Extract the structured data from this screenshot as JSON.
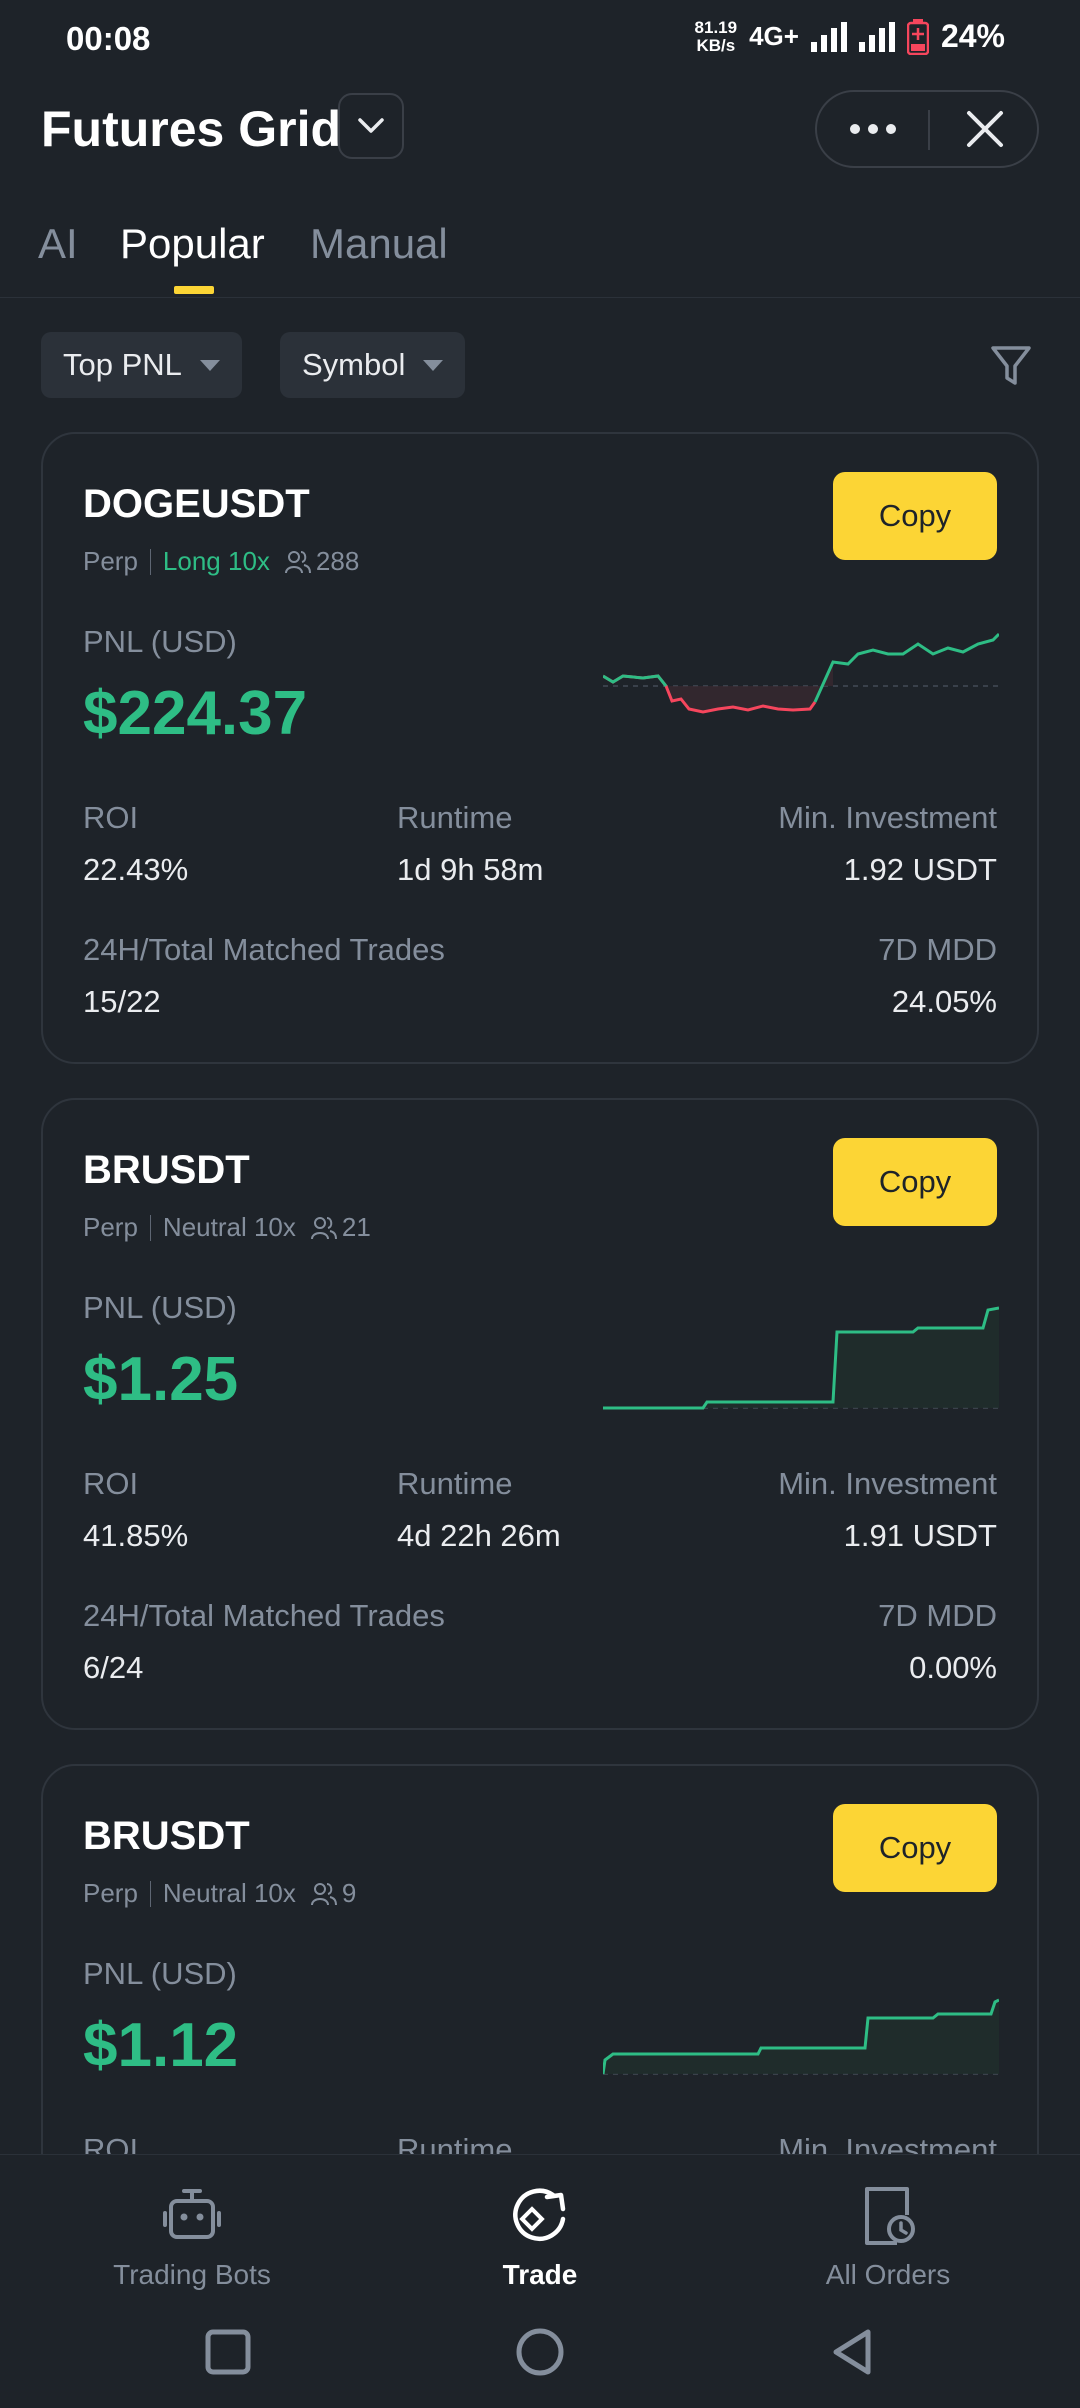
{
  "status_bar": {
    "time": "00:08",
    "net_speed_value": "81.19",
    "net_speed_unit": "KB/s",
    "network": "4G+",
    "battery": "24%",
    "battery_color": "#f6465d"
  },
  "header": {
    "title": "Futures Grid",
    "dropdown_icon": "chevron-down-icon",
    "more_icon": "more-horizontal-icon",
    "close_icon": "close-icon"
  },
  "tabs": [
    {
      "label": "AI",
      "active": false
    },
    {
      "label": "Popular",
      "active": true
    },
    {
      "label": "Manual",
      "active": false
    }
  ],
  "filters": {
    "sort": "Top PNL",
    "symbol": "Symbol",
    "filter_icon": "funnel-icon"
  },
  "colors": {
    "accent": "#fcd535",
    "positive": "#2ebd85",
    "negative": "#f6465d",
    "background": "#1e2329",
    "muted": "#848e9c"
  },
  "labels": {
    "copy": "Copy",
    "pnl": "PNL (USD)",
    "roi": "ROI",
    "runtime": "Runtime",
    "min_investment": "Min. Investment",
    "matched_trades": "24H/Total Matched Trades",
    "mdd": "7D MDD"
  },
  "cards": [
    {
      "symbol": "DOGEUSDT",
      "type": "Perp",
      "direction": "Long 10x",
      "copiers": "288",
      "pnl": "$224.37",
      "roi": "22.43%",
      "runtime": "1d 9h 58m",
      "min_investment": "1.92 USDT",
      "matched_trades": "15/22",
      "mdd": "24.05%"
    },
    {
      "symbol": "BRUSDT",
      "type": "Perp",
      "direction": "Neutral 10x",
      "copiers": "21",
      "pnl": "$1.25",
      "roi": "41.85%",
      "runtime": "4d 22h 26m",
      "min_investment": "1.91 USDT",
      "matched_trades": "6/24",
      "mdd": "0.00%"
    },
    {
      "symbol": "BRUSDT",
      "type": "Perp",
      "direction": "Neutral 10x",
      "copiers": "9",
      "pnl": "$1.12",
      "roi": "",
      "runtime": "",
      "min_investment": ""
    }
  ],
  "bottom_nav": [
    {
      "label": "Trading Bots",
      "icon": "robot-icon",
      "active": false
    },
    {
      "label": "Trade",
      "icon": "trade-icon",
      "active": true
    },
    {
      "label": "All Orders",
      "icon": "orders-clock-icon",
      "active": false
    }
  ],
  "system_nav": [
    "recents-square-icon",
    "home-circle-icon",
    "back-triangle-icon"
  ]
}
